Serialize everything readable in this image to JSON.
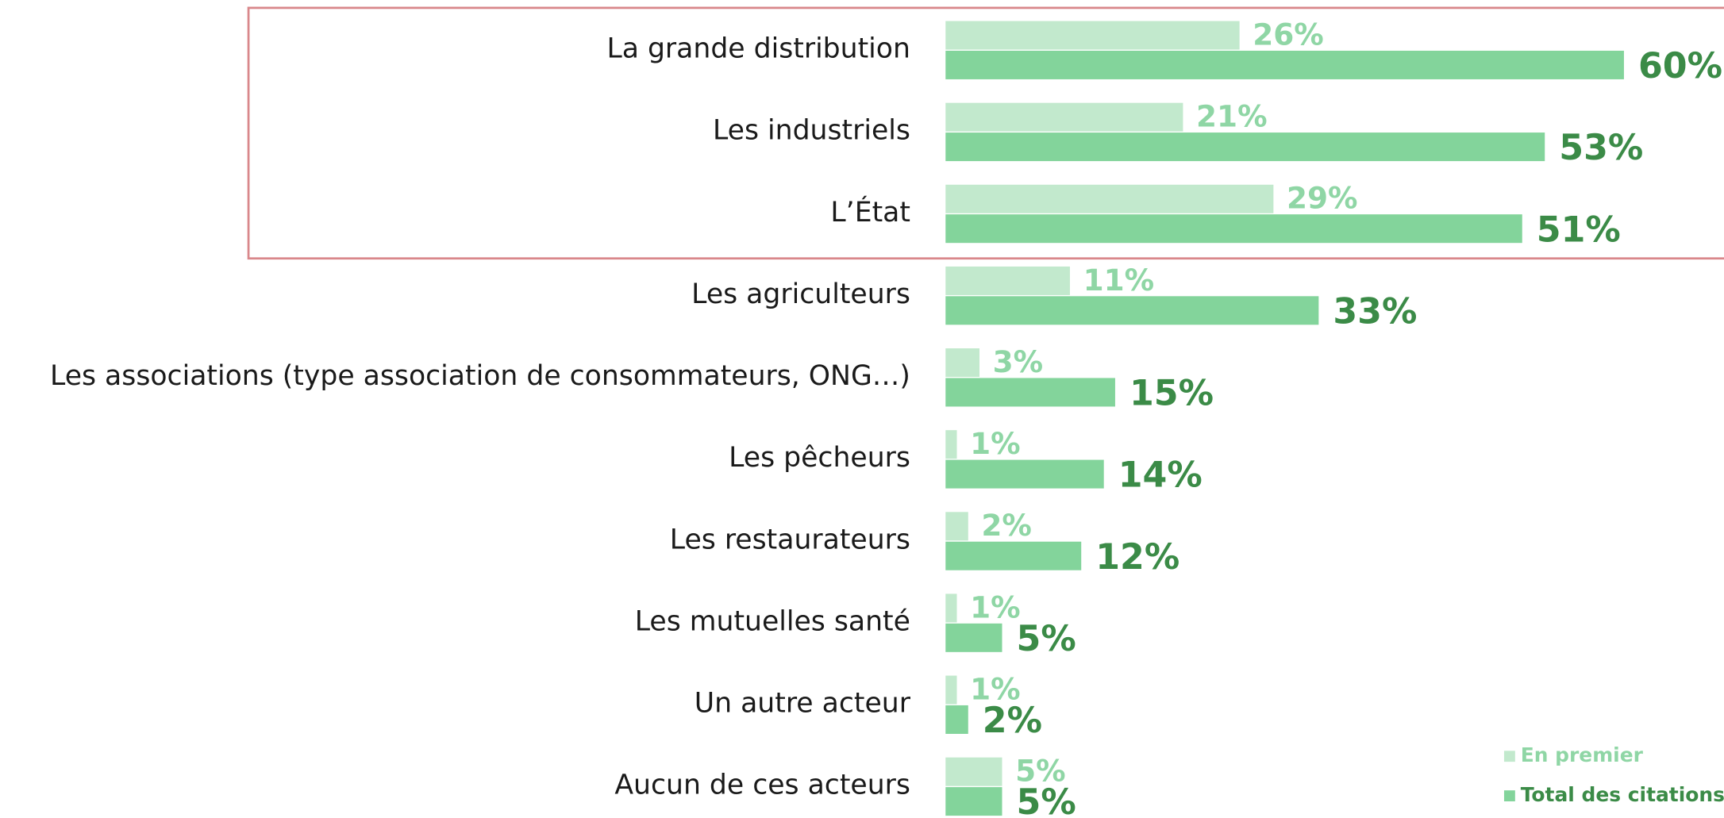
{
  "chart_data": {
    "type": "bar",
    "orientation": "horizontal",
    "categories": [
      "La grande distribution",
      "Les industriels",
      "L’État",
      "Les agriculteurs",
      "Les associations (type association de consommateurs, ONG…)",
      "Les pêcheurs",
      "Les restaurateurs",
      "Les mutuelles santé",
      "Un autre acteur",
      "Aucun de ces acteurs"
    ],
    "series": [
      {
        "name": "En premier",
        "color": "#c2e9cd",
        "label_color": "#8fd6a5",
        "values": [
          26,
          21,
          29,
          11,
          3,
          1,
          2,
          1,
          1,
          5
        ],
        "value_labels": [
          "26%",
          "21%",
          "29%",
          "11%",
          "3%",
          "1%",
          "2%",
          "1%",
          "1%",
          "5%"
        ]
      },
      {
        "name": "Total des citations*",
        "color": "#83d49b",
        "label_color": "#3b8b47",
        "values": [
          60,
          53,
          51,
          33,
          15,
          14,
          12,
          5,
          2,
          5
        ],
        "value_labels": [
          "60%",
          "53%",
          "51%",
          "33%",
          "15%",
          "14%",
          "12%",
          "5%",
          "2%",
          "5%"
        ]
      }
    ],
    "legend": "bottom-right"
  }
}
